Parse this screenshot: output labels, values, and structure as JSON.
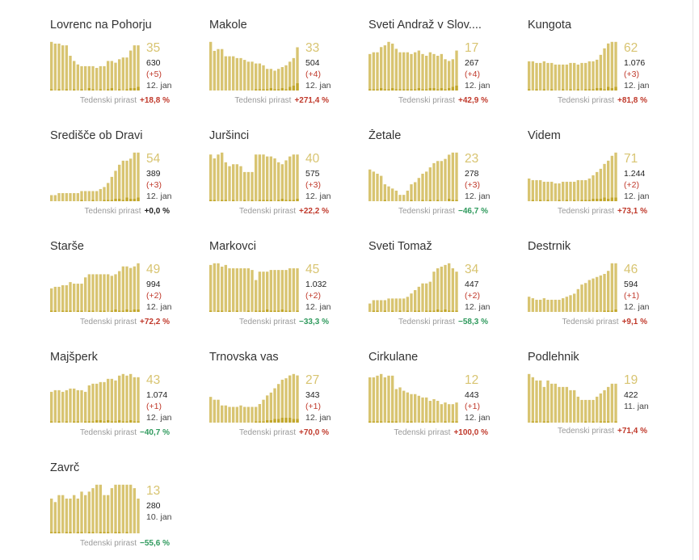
{
  "growth_label": "Tedenski prirast",
  "colors": {
    "bar": "#d8c471",
    "bar_light": "#dccd7a",
    "bar_dark": "#c2a72c",
    "big": "#d8c471",
    "positive": "#c0392b",
    "negative": "#2f9a5d"
  },
  "cards": [
    {
      "name": "Lovrenc na Pohorju",
      "big": "35",
      "total": "630",
      "delta": "(+5)",
      "date": "12. jan",
      "growth": "+18,8 %",
      "sign": "pos"
    },
    {
      "name": "Makole",
      "big": "33",
      "total": "504",
      "delta": "(+4)",
      "date": "12. jan",
      "growth": "+271,4 %",
      "sign": "pos"
    },
    {
      "name": "Sveti Andraž v Slov....",
      "big": "17",
      "total": "267",
      "delta": "(+4)",
      "date": "12. jan",
      "growth": "+42,9 %",
      "sign": "pos"
    },
    {
      "name": "Kungota",
      "big": "62",
      "total": "1.076",
      "delta": "(+3)",
      "date": "12. jan",
      "growth": "+81,8 %",
      "sign": "pos"
    },
    {
      "name": "Središče ob Dravi",
      "big": "54",
      "total": "389",
      "delta": "(+3)",
      "date": "12. jan",
      "growth": "+0,0 %",
      "sign": "zero"
    },
    {
      "name": "Juršinci",
      "big": "40",
      "total": "575",
      "delta": "(+3)",
      "date": "12. jan",
      "growth": "+22,2 %",
      "sign": "pos"
    },
    {
      "name": "Žetale",
      "big": "23",
      "total": "278",
      "delta": "(+3)",
      "date": "12. jan",
      "growth": "−46,7 %",
      "sign": "neg"
    },
    {
      "name": "Videm",
      "big": "71",
      "total": "1.244",
      "delta": "(+2)",
      "date": "12. jan",
      "growth": "+73,1 %",
      "sign": "pos"
    },
    {
      "name": "Starše",
      "big": "49",
      "total": "994",
      "delta": "(+2)",
      "date": "12. jan",
      "growth": "+72,2 %",
      "sign": "pos"
    },
    {
      "name": "Markovci",
      "big": "45",
      "total": "1.032",
      "delta": "(+2)",
      "date": "12. jan",
      "growth": "−33,3 %",
      "sign": "neg"
    },
    {
      "name": "Sveti Tomaž",
      "big": "34",
      "total": "447",
      "delta": "(+2)",
      "date": "12. jan",
      "growth": "−58,3 %",
      "sign": "neg"
    },
    {
      "name": "Destrnik",
      "big": "46",
      "total": "594",
      "delta": "(+1)",
      "date": "12. jan",
      "growth": "+9,1 %",
      "sign": "pos"
    },
    {
      "name": "Majšperk",
      "big": "43",
      "total": "1.074",
      "delta": "(+1)",
      "date": "12. jan",
      "growth": "−40,7 %",
      "sign": "neg"
    },
    {
      "name": "Trnovska vas",
      "big": "27",
      "total": "343",
      "delta": "(+1)",
      "date": "12. jan",
      "growth": "+70,0 %",
      "sign": "pos"
    },
    {
      "name": "Cirkulane",
      "big": "12",
      "total": "443",
      "delta": "(+1)",
      "date": "12. jan",
      "growth": "+100,0 %",
      "sign": "pos"
    },
    {
      "name": "Podlehnik",
      "big": "19",
      "total": "422",
      "delta": "",
      "date": "11. jan",
      "growth": "+71,4 %",
      "sign": "pos"
    },
    {
      "name": "Zavrč",
      "big": "13",
      "total": "280",
      "delta": "",
      "date": "10. jan",
      "growth": "−55,6 %",
      "sign": "neg"
    }
  ],
  "chart_data": [
    {
      "type": "bar",
      "title": "Lovrenc na Pohorju",
      "values": [
        28,
        27,
        27,
        26,
        26,
        20,
        17,
        15,
        14,
        14,
        14,
        14,
        13,
        14,
        14,
        17,
        17,
        16,
        18,
        19,
        19,
        23,
        26,
        26
      ],
      "new": [
        1,
        0,
        1,
        0,
        1,
        0,
        1,
        0,
        1,
        0,
        2,
        1,
        0,
        1,
        0,
        1,
        2,
        0,
        1,
        0,
        1,
        2,
        2,
        3
      ]
    },
    {
      "name_ref": "Makole",
      "type": "bar",
      "values": [
        27,
        22,
        23,
        23,
        19,
        19,
        19,
        18,
        18,
        17,
        16,
        16,
        15,
        15,
        14,
        12,
        12,
        11,
        12,
        13,
        14,
        16,
        18,
        24
      ],
      "new": [
        0,
        0,
        0,
        0,
        0,
        0,
        0,
        0,
        0,
        0,
        0,
        0,
        1,
        1,
        1,
        1,
        2,
        1,
        1,
        2,
        1,
        3,
        4,
        6
      ]
    },
    {
      "name_ref": "Sveti Andraž v Slov....",
      "type": "bar",
      "values": [
        21,
        22,
        22,
        25,
        26,
        28,
        27,
        24,
        22,
        22,
        22,
        21,
        22,
        23,
        21,
        20,
        22,
        21,
        20,
        21,
        18,
        17,
        18,
        23
      ],
      "new": [
        1,
        1,
        1,
        2,
        1,
        1,
        2,
        1,
        1,
        1,
        1,
        1,
        1,
        2,
        1,
        1,
        2,
        2,
        1,
        2,
        1,
        2,
        3,
        4
      ]
    },
    {
      "name_ref": "Kungota",
      "type": "bar",
      "values": [
        18,
        18,
        17,
        17,
        18,
        17,
        17,
        16,
        16,
        16,
        16,
        17,
        17,
        16,
        17,
        17,
        18,
        18,
        19,
        22,
        26,
        29,
        30,
        30
      ],
      "new": [
        1,
        0,
        1,
        0,
        1,
        0,
        1,
        0,
        0,
        1,
        0,
        1,
        0,
        1,
        0,
        1,
        1,
        1,
        2,
        2,
        1,
        3,
        2,
        3
      ]
    },
    {
      "name_ref": "Središče ob Dravi",
      "type": "bar",
      "values": [
        3,
        3,
        4,
        4,
        4,
        4,
        4,
        4,
        5,
        5,
        5,
        5,
        5,
        6,
        7,
        9,
        12,
        15,
        18,
        20,
        20,
        21,
        24,
        24
      ],
      "new": [
        0,
        0,
        0,
        0,
        0,
        0,
        0,
        0,
        1,
        0,
        0,
        1,
        0,
        0,
        1,
        1,
        1,
        2,
        2,
        1,
        3,
        2,
        2,
        3
      ]
    },
    {
      "name_ref": "Juršinci",
      "type": "bar",
      "values": [
        24,
        22,
        24,
        25,
        20,
        18,
        19,
        19,
        18,
        15,
        15,
        15,
        24,
        24,
        24,
        23,
        23,
        22,
        20,
        19,
        21,
        23,
        24,
        24
      ],
      "new": [
        1,
        1,
        0,
        1,
        1,
        0,
        1,
        0,
        0,
        1,
        0,
        1,
        0,
        1,
        1,
        1,
        1,
        0,
        1,
        2,
        1,
        1,
        1,
        2
      ]
    },
    {
      "name_ref": "Žetale",
      "type": "bar",
      "values": [
        15,
        14,
        13,
        12,
        8,
        7,
        6,
        5,
        3,
        3,
        5,
        8,
        9,
        11,
        13,
        14,
        16,
        18,
        19,
        19,
        20,
        22,
        23,
        23
      ],
      "new": [
        0,
        0,
        0,
        0,
        1,
        0,
        0,
        0,
        0,
        0,
        0,
        1,
        0,
        0,
        1,
        0,
        1,
        0,
        1,
        0,
        0,
        2,
        1,
        1
      ]
    },
    {
      "name_ref": "Videm",
      "type": "bar",
      "values": [
        14,
        13,
        13,
        13,
        12,
        12,
        12,
        11,
        11,
        12,
        12,
        12,
        12,
        13,
        13,
        13,
        14,
        16,
        18,
        20,
        23,
        25,
        28,
        30
      ],
      "new": [
        0,
        1,
        0,
        1,
        0,
        1,
        0,
        0,
        1,
        0,
        1,
        0,
        1,
        0,
        1,
        1,
        1,
        2,
        2,
        2,
        3,
        2,
        3,
        3
      ]
    },
    {
      "name_ref": "Starše",
      "type": "bar",
      "values": [
        15,
        16,
        16,
        17,
        17,
        19,
        18,
        18,
        18,
        22,
        24,
        24,
        24,
        24,
        24,
        24,
        23,
        24,
        26,
        29,
        29,
        28,
        29,
        31
      ],
      "new": [
        1,
        1,
        0,
        1,
        1,
        1,
        0,
        1,
        1,
        0,
        1,
        1,
        0,
        1,
        1,
        0,
        1,
        2,
        1,
        1,
        2,
        1,
        2,
        2
      ]
    },
    {
      "name_ref": "Markovci",
      "type": "bar",
      "values": [
        28,
        29,
        29,
        27,
        28,
        26,
        26,
        26,
        26,
        26,
        26,
        25,
        19,
        24,
        24,
        24,
        25,
        25,
        25,
        25,
        25,
        26,
        26,
        26
      ],
      "new": [
        1,
        0,
        1,
        1,
        0,
        1,
        0,
        1,
        0,
        0,
        1,
        0,
        1,
        1,
        1,
        2,
        1,
        1,
        1,
        2,
        1,
        1,
        0,
        1
      ]
    },
    {
      "name_ref": "Sveti Tomaž",
      "type": "bar",
      "values": [
        5,
        7,
        7,
        7,
        7,
        8,
        8,
        8,
        8,
        8,
        9,
        11,
        13,
        15,
        17,
        17,
        18,
        24,
        26,
        27,
        28,
        29,
        26,
        24
      ],
      "new": [
        0,
        1,
        1,
        0,
        1,
        0,
        1,
        0,
        1,
        0,
        1,
        0,
        1,
        1,
        0,
        1,
        1,
        1,
        2,
        1,
        2,
        1,
        1,
        1
      ]
    },
    {
      "name_ref": "Destrnik",
      "type": "bar",
      "values": [
        10,
        9,
        8,
        8,
        9,
        8,
        8,
        8,
        8,
        9,
        10,
        11,
        12,
        15,
        18,
        19,
        21,
        22,
        23,
        24,
        25,
        27,
        32,
        32
      ],
      "new": [
        0,
        0,
        0,
        0,
        0,
        0,
        0,
        0,
        0,
        0,
        0,
        0,
        0,
        0,
        0,
        0,
        0,
        0,
        1,
        0,
        1,
        1,
        1,
        2
      ]
    },
    {
      "name_ref": "Majšperk",
      "type": "bar",
      "values": [
        19,
        20,
        20,
        19,
        20,
        21,
        21,
        20,
        20,
        19,
        23,
        24,
        24,
        25,
        25,
        27,
        27,
        26,
        29,
        30,
        29,
        30,
        28,
        28
      ],
      "new": [
        1,
        0,
        1,
        0,
        1,
        0,
        1,
        1,
        0,
        1,
        1,
        1,
        2,
        2,
        1,
        2,
        1,
        1,
        2,
        1,
        1,
        2,
        1,
        1
      ]
    },
    {
      "name_ref": "Trnovska vas",
      "type": "bar",
      "values": [
        18,
        16,
        16,
        12,
        12,
        11,
        11,
        11,
        12,
        11,
        11,
        11,
        11,
        13,
        16,
        19,
        21,
        24,
        27,
        30,
        31,
        33,
        34,
        33
      ],
      "new": [
        0,
        0,
        0,
        0,
        0,
        0,
        0,
        0,
        0,
        0,
        0,
        0,
        1,
        1,
        1,
        2,
        2,
        3,
        3,
        4,
        4,
        4,
        3,
        3
      ]
    },
    {
      "name_ref": "Cirkulane",
      "type": "bar",
      "values": [
        27,
        27,
        28,
        29,
        27,
        28,
        28,
        20,
        21,
        19,
        18,
        17,
        17,
        16,
        15,
        15,
        13,
        14,
        13,
        11,
        12,
        11,
        11,
        12
      ],
      "new": [
        1,
        1,
        1,
        1,
        0,
        1,
        1,
        1,
        0,
        0,
        1,
        1,
        0,
        0,
        1,
        0,
        1,
        1,
        0,
        0,
        1,
        0,
        1,
        1
      ]
    },
    {
      "name_ref": "Podlehnik",
      "type": "bar",
      "values": [
        15,
        14,
        13,
        13,
        11,
        13,
        12,
        12,
        11,
        11,
        11,
        10,
        10,
        8,
        7,
        7,
        7,
        7,
        8,
        9,
        10,
        11,
        12,
        12
      ],
      "new": [
        0,
        1,
        1,
        0,
        1,
        1,
        0,
        0,
        0,
        0,
        0,
        0,
        0,
        0,
        0,
        1,
        0,
        1,
        0,
        1,
        1,
        1,
        0,
        1
      ]
    },
    {
      "name_ref": "Zavrč",
      "type": "bar",
      "values": [
        10,
        9,
        11,
        11,
        10,
        10,
        11,
        10,
        12,
        11,
        12,
        13,
        14,
        14,
        11,
        11,
        13,
        14,
        14,
        14,
        14,
        14,
        13,
        10
      ],
      "new": [
        1,
        1,
        1,
        0,
        1,
        1,
        0,
        1,
        1,
        0,
        1,
        1,
        0,
        1,
        1,
        1,
        0,
        1,
        1,
        0,
        1,
        0,
        0,
        0
      ]
    }
  ]
}
